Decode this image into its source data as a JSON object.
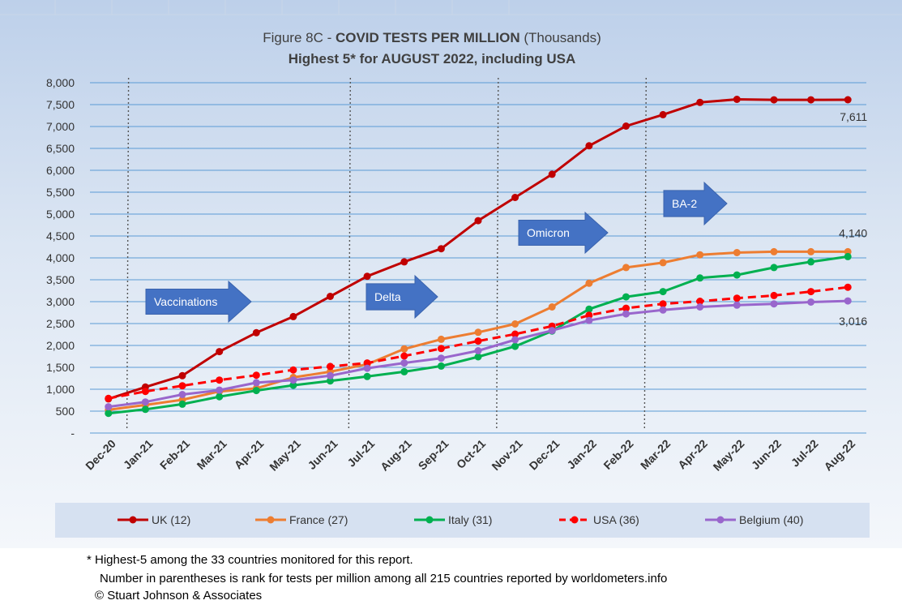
{
  "chart_data": {
    "type": "line",
    "title_prefix": "Figure 8C - ",
    "title_bold": "COVID TESTS PER MILLION",
    "title_suffix": " (Thousands)",
    "subtitle": "Highest 5* for AUGUST 2022, including USA",
    "xlabel": "",
    "ylabel": "",
    "ylim": [
      0,
      8000
    ],
    "yticks": [
      "-",
      "500",
      "1,000",
      "1,500",
      "2,000",
      "2,500",
      "3,000",
      "3,500",
      "4,000",
      "4,500",
      "5,000",
      "5,500",
      "6,000",
      "6,500",
      "7,000",
      "7,500",
      "8,000"
    ],
    "ytick_values": [
      0,
      500,
      1000,
      1500,
      2000,
      2500,
      3000,
      3500,
      4000,
      4500,
      5000,
      5500,
      6000,
      6500,
      7000,
      7500,
      8000
    ],
    "grid": true,
    "legend_position": "bottom",
    "categories": [
      "Dec-20",
      "Jan-21",
      "Feb-21",
      "Mar-21",
      "Apr-21",
      "May-21",
      "Jun-21",
      "Jul-21",
      "Aug-21",
      "Sep-21",
      "Oct-21",
      "Nov-21",
      "Dec-21",
      "Jan-22",
      "Feb-22",
      "Mar-22",
      "Apr-22",
      "May-22",
      "Jun-22",
      "Jul-22",
      "Aug-22"
    ],
    "series": [
      {
        "name": "UK (12)",
        "color": "#C00000",
        "dashed": false,
        "values": [
          780,
          1050,
          1310,
          1860,
          2290,
          2660,
          3120,
          3580,
          3910,
          4210,
          4850,
          5380,
          5910,
          6560,
          7010,
          7270,
          7550,
          7620,
          7610,
          7610,
          7611
        ]
      },
      {
        "name": "France (27)",
        "color": "#ED7D31",
        "dashed": false,
        "values": [
          530,
          640,
          760,
          950,
          1020,
          1270,
          1400,
          1570,
          1920,
          2140,
          2300,
          2490,
          2880,
          3420,
          3780,
          3890,
          4070,
          4120,
          4140,
          4140,
          4140
        ]
      },
      {
        "name": "Italy (31)",
        "color": "#00B050",
        "dashed": false,
        "values": [
          450,
          540,
          660,
          830,
          970,
          1090,
          1190,
          1290,
          1400,
          1530,
          1740,
          1980,
          2330,
          2830,
          3110,
          3230,
          3540,
          3610,
          3780,
          3910,
          4030
        ]
      },
      {
        "name": "USA (36)",
        "color": "#FF0000",
        "dashed": true,
        "values": [
          790,
          950,
          1080,
          1210,
          1320,
          1440,
          1520,
          1600,
          1760,
          1930,
          2100,
          2260,
          2440,
          2690,
          2850,
          2950,
          3010,
          3080,
          3140,
          3230,
          3330
        ]
      },
      {
        "name": "Belgium (40)",
        "color": "#9966CC",
        "dashed": false,
        "values": [
          600,
          710,
          880,
          980,
          1150,
          1210,
          1310,
          1480,
          1600,
          1710,
          1880,
          2130,
          2340,
          2570,
          2720,
          2810,
          2880,
          2920,
          2950,
          2990,
          3016
        ]
      }
    ],
    "data_labels": [
      {
        "text": "7,611",
        "series": 0,
        "index": 20
      },
      {
        "text": "4,140",
        "series": 1,
        "index": 20
      },
      {
        "text": "3,016",
        "series": 4,
        "index": 20
      }
    ],
    "annotations": [
      {
        "text": "Vaccinations",
        "category_index": 1
      },
      {
        "text": "Delta",
        "category_index": 7
      },
      {
        "text": "Omicron",
        "category_index": 11
      },
      {
        "text": "BA-2",
        "category_index": 15
      }
    ],
    "vertical_markers": [
      1,
      7,
      11,
      15
    ],
    "colors": {
      "plot_background_top": "#BDD0EA",
      "plot_background_bottom": "#F4F7FB",
      "gridline": "#5B9BD5",
      "arrow_fill": "#4472C4",
      "legend_background": "#D6E1F1"
    }
  },
  "footnote": {
    "line1": "* Highest-5 among the 33 countries monitored for this report.",
    "line2": "Number in parentheses is rank for tests per million among all 215 countries reported by worldometers.info",
    "line3": "© Stuart Johnson & Associates"
  }
}
